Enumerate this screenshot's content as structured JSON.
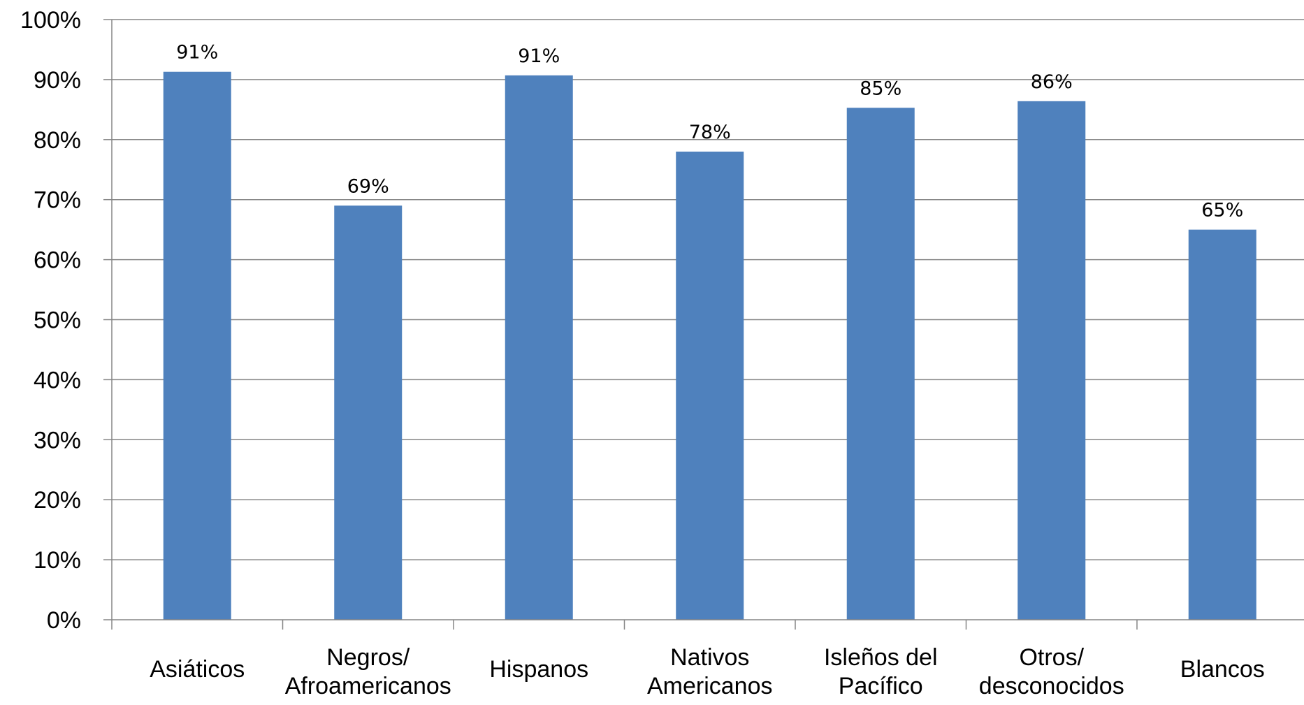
{
  "chart_data": {
    "type": "bar",
    "categories": [
      [
        "Asiáticos"
      ],
      [
        "Negros/",
        "Afroamericanos"
      ],
      [
        "Hispanos"
      ],
      [
        "Nativos",
        "Americanos"
      ],
      [
        "Isleños del",
        "Pacífico"
      ],
      [
        "Otros/",
        "desconocidos"
      ],
      [
        "Blancos"
      ]
    ],
    "values": [
      91.3,
      69,
      90.7,
      78,
      85.3,
      86.4,
      65
    ],
    "data_labels": [
      "91%",
      "69%",
      "91%",
      "78%",
      "85%",
      "86%",
      "65%"
    ],
    "ylim": [
      0,
      100
    ],
    "yticks": [
      0,
      10,
      20,
      30,
      40,
      50,
      60,
      70,
      80,
      90,
      100
    ],
    "ytick_labels": [
      "0%",
      "10%",
      "20%",
      "30%",
      "40%",
      "50%",
      "60%",
      "70%",
      "80%",
      "90%",
      "100%"
    ],
    "grid": true,
    "legend": "none",
    "colors": {
      "bar": "#4F81BD",
      "grid": "#868686",
      "axis": "#868686"
    }
  }
}
